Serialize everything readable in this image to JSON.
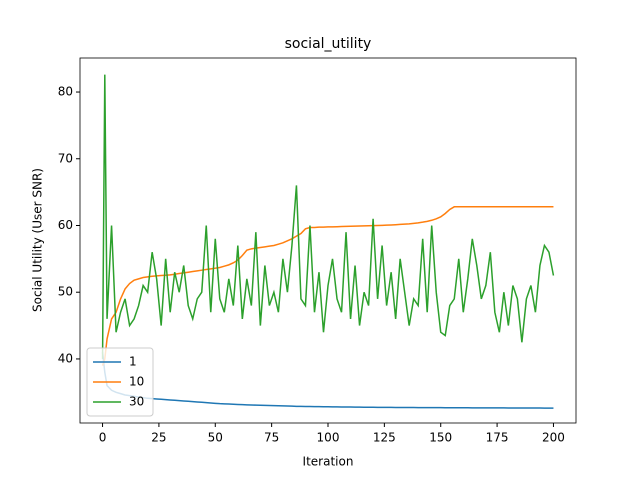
{
  "chart_data": {
    "type": "line",
    "title": "social_utility",
    "x_label": "Iteration",
    "y_label": "Social Utility (User SNR)",
    "x": [
      0,
      1,
      2,
      4,
      6,
      8,
      10,
      12,
      14,
      16,
      18,
      20,
      22,
      24,
      26,
      28,
      30,
      32,
      34,
      36,
      38,
      40,
      42,
      44,
      46,
      48,
      50,
      52,
      54,
      56,
      58,
      60,
      62,
      64,
      66,
      68,
      70,
      72,
      74,
      76,
      78,
      80,
      82,
      84,
      86,
      88,
      90,
      92,
      94,
      96,
      98,
      100,
      102,
      104,
      106,
      108,
      110,
      112,
      114,
      116,
      118,
      120,
      122,
      124,
      126,
      128,
      130,
      132,
      134,
      136,
      138,
      140,
      142,
      144,
      146,
      148,
      150,
      152,
      154,
      156,
      158,
      160,
      162,
      164,
      166,
      168,
      170,
      172,
      174,
      176,
      178,
      180,
      182,
      184,
      186,
      188,
      190,
      192,
      194,
      196,
      198,
      200
    ],
    "series": [
      {
        "name": "1",
        "color": "#1f77b4",
        "values": [
          41,
          38,
          36,
          35.3,
          35,
          34.8,
          34.6,
          34.5,
          34.4,
          34.3,
          34.2,
          34.1,
          34.05,
          34,
          33.95,
          33.9,
          33.85,
          33.8,
          33.75,
          33.7,
          33.65,
          33.6,
          33.55,
          33.5,
          33.45,
          33.4,
          33.35,
          33.3,
          33.27,
          33.24,
          33.21,
          33.18,
          33.15,
          33.12,
          33.1,
          33.08,
          33.06,
          33.04,
          33.02,
          33,
          32.98,
          32.96,
          32.94,
          32.92,
          32.9,
          32.89,
          32.88,
          32.87,
          32.86,
          32.85,
          32.84,
          32.83,
          32.82,
          32.81,
          32.8,
          32.8,
          32.79,
          32.78,
          32.78,
          32.77,
          32.76,
          32.76,
          32.75,
          32.75,
          32.74,
          32.74,
          32.73,
          32.73,
          32.72,
          32.72,
          32.72,
          32.71,
          32.71,
          32.7,
          32.7,
          32.7,
          32.7,
          32.69,
          32.69,
          32.69,
          32.68,
          32.68,
          32.68,
          32.67,
          32.67,
          32.67,
          32.67,
          32.66,
          32.66,
          32.66,
          32.66,
          32.65,
          32.65,
          32.65,
          32.65,
          32.64,
          32.64,
          32.64,
          32.64,
          32.63,
          32.63,
          32.63
        ]
      },
      {
        "name": "10",
        "color": "#ff7f0e",
        "values": [
          39,
          40,
          43,
          46,
          47,
          49,
          50.5,
          51.3,
          51.8,
          52,
          52.2,
          52.3,
          52.4,
          52.45,
          52.5,
          52.55,
          52.6,
          52.7,
          52.8,
          52.9,
          53,
          53.1,
          53.2,
          53.3,
          53.4,
          53.5,
          53.6,
          53.7,
          53.9,
          54.1,
          54.4,
          54.8,
          55.5,
          56.3,
          56.5,
          56.6,
          56.7,
          56.8,
          56.9,
          57,
          57.2,
          57.4,
          57.7,
          58,
          58.4,
          58.8,
          59.5,
          59.7,
          59.7,
          59.75,
          59.75,
          59.8,
          59.8,
          59.82,
          59.84,
          59.86,
          59.88,
          59.9,
          59.92,
          59.94,
          59.96,
          59.98,
          60,
          60.02,
          60.05,
          60.08,
          60.12,
          60.16,
          60.2,
          60.25,
          60.32,
          60.4,
          60.5,
          60.62,
          60.78,
          61,
          61.3,
          61.8,
          62.4,
          62.8,
          62.8,
          62.8,
          62.8,
          62.8,
          62.8,
          62.8,
          62.8,
          62.8,
          62.8,
          62.8,
          62.8,
          62.8,
          62.8,
          62.8,
          62.8,
          62.8,
          62.8,
          62.8,
          62.8,
          62.8,
          62.8,
          62.8
        ]
      },
      {
        "name": "30",
        "color": "#2ca02c",
        "values": [
          40,
          82.6,
          46,
          60,
          44,
          47,
          49,
          45,
          46,
          48,
          51,
          50,
          56,
          52,
          45,
          55,
          47,
          53,
          50,
          54,
          48,
          46,
          49,
          50,
          60,
          47,
          58,
          49,
          47,
          52,
          48,
          57,
          46,
          52,
          48,
          59,
          45,
          54,
          48,
          50,
          47,
          55,
          50,
          57,
          66,
          49,
          48,
          60,
          47,
          53,
          44,
          51,
          55,
          49,
          47,
          59,
          46,
          54,
          45,
          50,
          48,
          61,
          49,
          57,
          48,
          53,
          46,
          55,
          50,
          45,
          49,
          48,
          58,
          47,
          60,
          50,
          44,
          43.5,
          48,
          49,
          55,
          47,
          52,
          58,
          54,
          49,
          51,
          56,
          47,
          44,
          50,
          45,
          51,
          49,
          42.5,
          49,
          51,
          47,
          54,
          57,
          56,
          52.5
        ]
      }
    ],
    "xlim": [
      -10,
      210
    ],
    "ylim": [
      30.4,
      85.1
    ],
    "xticks": [
      0,
      25,
      50,
      75,
      100,
      125,
      150,
      175,
      200
    ],
    "yticks": [
      40,
      50,
      60,
      70,
      80
    ],
    "legend": "lower left"
  }
}
